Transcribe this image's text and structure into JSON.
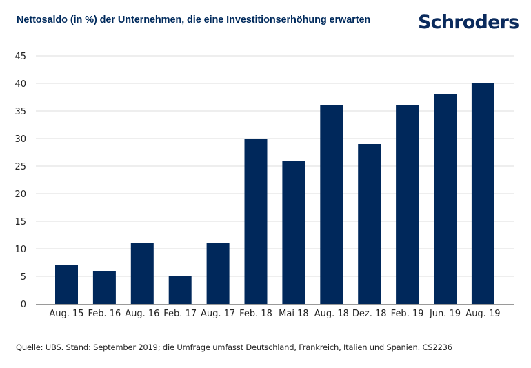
{
  "header": {
    "title": "Nettosaldo (in %) der Unternehmen, die eine Investitionserhöhung erwarten",
    "logo": "Schroders"
  },
  "footer": {
    "source": "Quelle: UBS. Stand: September 2019; die Umfrage umfasst Deutschland, Frankreich, Italien und Spanien. CS2236"
  },
  "colors": {
    "bar": "#00285b",
    "grid": "#dcdcdc",
    "axis": "#9a9a9a",
    "title": "#002a5c"
  },
  "chart_data": {
    "type": "bar",
    "title": "Nettosaldo (in %) der Unternehmen, die eine Investitionserhöhung erwarten",
    "xlabel": "",
    "ylabel": "",
    "categories": [
      "Aug. 15",
      "Feb. 16",
      "Aug. 16",
      "Feb. 17",
      "Aug. 17",
      "Feb. 18",
      "Mai 18",
      "Aug. 18",
      "Dez. 18",
      "Feb. 19",
      "Jun. 19",
      "Aug. 19"
    ],
    "values": [
      7,
      6,
      11,
      5,
      11,
      30,
      26,
      36,
      29,
      36,
      38,
      40
    ],
    "ylim": [
      0,
      45
    ],
    "yticks": [
      0,
      5,
      10,
      15,
      20,
      25,
      30,
      35,
      40,
      45
    ],
    "grid": true,
    "legend": "none"
  }
}
